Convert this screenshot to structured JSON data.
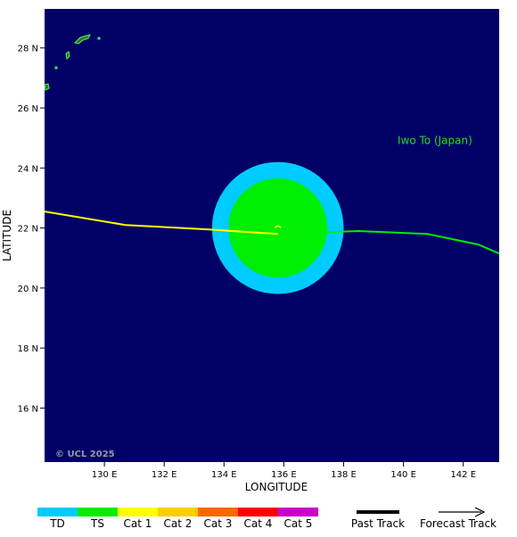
{
  "map": {
    "background_color": "#000066",
    "land_color": "#3a6a3a",
    "coast_color": "#44ff44",
    "lon_range": [
      128.0,
      143.2
    ],
    "lat_range": [
      14.2,
      29.3
    ],
    "copyright": "© UCL 2025",
    "place_label": "Iwo To (Japan)",
    "place_label_color": "#22dd22",
    "place_label_lonlat": [
      142.3,
      24.8
    ],
    "x_ticks": [
      {
        "value": 130,
        "label": "130 E"
      },
      {
        "value": 132,
        "label": "132 E"
      },
      {
        "value": 134,
        "label": "134 E"
      },
      {
        "value": 136,
        "label": "136 E"
      },
      {
        "value": 138,
        "label": "138 E"
      },
      {
        "value": 140,
        "label": "140 E"
      },
      {
        "value": 142,
        "label": "142 E"
      }
    ],
    "y_ticks": [
      {
        "value": 16,
        "label": "16 N"
      },
      {
        "value": 18,
        "label": "18 N"
      },
      {
        "value": 20,
        "label": "20 N"
      },
      {
        "value": 22,
        "label": "22 N"
      },
      {
        "value": 24,
        "label": "24 N"
      },
      {
        "value": 26,
        "label": "26 N"
      },
      {
        "value": 28,
        "label": "28 N"
      }
    ],
    "x_axis_title": "LONGITUDE",
    "y_axis_title": "LATITUDE"
  },
  "storm": {
    "center": [
      135.8,
      22.0
    ],
    "wind_radii_deg": [
      {
        "category": "TD",
        "radius": 2.2,
        "color": "#00ccff"
      },
      {
        "category": "TS",
        "radius": 1.65,
        "color": "#00ee00"
      }
    ],
    "past_track": {
      "color": "#ffff00",
      "points": [
        [
          128.0,
          22.55
        ],
        [
          130.7,
          22.1
        ],
        [
          133.5,
          21.95
        ],
        [
          135.8,
          21.8
        ]
      ]
    },
    "forecast_track": {
      "color": "#00ee00",
      "points": [
        [
          135.8,
          21.8
        ],
        [
          138.5,
          21.9
        ],
        [
          140.8,
          21.8
        ],
        [
          142.5,
          21.45
        ],
        [
          143.2,
          21.15
        ]
      ]
    }
  },
  "legend": {
    "categories": [
      {
        "label": "TD",
        "color": "#00ccff"
      },
      {
        "label": "TS",
        "color": "#00ee00"
      },
      {
        "label": "Cat 1",
        "color": "#ffff00"
      },
      {
        "label": "Cat 2",
        "color": "#ffcc00"
      },
      {
        "label": "Cat 3",
        "color": "#ff6600"
      },
      {
        "label": "Cat 4",
        "color": "#ff0000"
      },
      {
        "label": "Cat 5",
        "color": "#cc00cc"
      }
    ],
    "past_track_label": "Past Track",
    "forecast_track_label": "Forecast Track"
  }
}
